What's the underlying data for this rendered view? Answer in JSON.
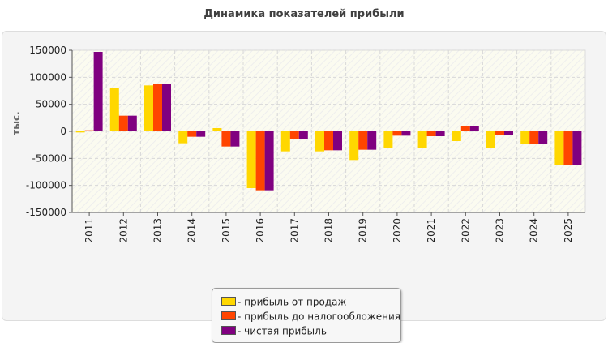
{
  "chart_data": {
    "type": "bar",
    "title": "Динамика показателей прибыли",
    "ylabel": "тыс.",
    "xlabel": "",
    "ylim": [
      -150000,
      150000
    ],
    "yticks": [
      150000,
      100000,
      50000,
      0,
      -50000,
      -100000,
      -150000
    ],
    "grid": true,
    "legend_position": "bottom",
    "categories": [
      "2011",
      "2012",
      "2013",
      "2014",
      "2015",
      "2016",
      "2017",
      "2018",
      "2019",
      "2020",
      "2021",
      "2022",
      "2023",
      "2024",
      "2025"
    ],
    "series": [
      {
        "name": "- прибыль от продаж",
        "color": "#ffd700",
        "values": [
          -2000,
          80000,
          85000,
          -22000,
          6000,
          -105000,
          -37000,
          -37000,
          -53000,
          -30000,
          -31000,
          -18000,
          -31000,
          -24000,
          -62000
        ]
      },
      {
        "name": "- прибыль до налогообложения",
        "color": "#ff4500",
        "values": [
          2000,
          29000,
          88000,
          -10000,
          -28000,
          -109000,
          -15000,
          -35000,
          -34000,
          -8000,
          -9000,
          9000,
          -6000,
          -24000,
          -62000
        ]
      },
      {
        "name": "- чистая прибыль",
        "color": "#800080",
        "values": [
          147000,
          29000,
          88000,
          -10000,
          -28000,
          -109000,
          -15000,
          -35000,
          -34000,
          -8000,
          -9000,
          9000,
          -6000,
          -24000,
          -62000
        ]
      }
    ]
  }
}
